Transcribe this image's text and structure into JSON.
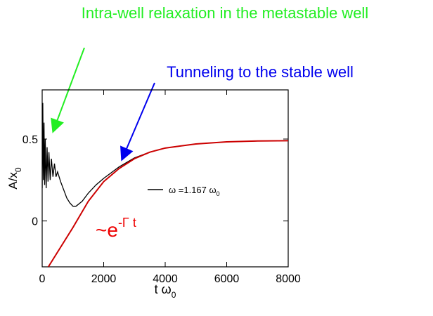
{
  "chart_data": {
    "type": "line",
    "annotations": {
      "relaxation": "Intra-well relaxation in the metastable well",
      "tunneling": "Tunneling to the stable well",
      "fit": [
        "~e",
        "-Γ t"
      ]
    },
    "xlabel": [
      "t ω",
      "0"
    ],
    "ylabel": [
      "A/x",
      "0"
    ],
    "xlim": [
      0,
      8000
    ],
    "ylim": [
      -0.28,
      0.8
    ],
    "xticks": [
      0,
      2000,
      4000,
      6000,
      8000
    ],
    "yticks": [
      0,
      0.5
    ],
    "series": [
      {
        "name": [
          "ω =1.167 ω",
          "0"
        ],
        "color": "#000000",
        "x": [
          0,
          20,
          40,
          60,
          80,
          100,
          130,
          160,
          190,
          220,
          260,
          300,
          350,
          400,
          450,
          500,
          600,
          700,
          800,
          900,
          1000,
          1100,
          1300,
          1500,
          1750,
          2000,
          2500,
          3000,
          3500,
          4000,
          5000,
          6000,
          7000,
          8000
        ],
        "values": [
          0.2,
          0.72,
          0.25,
          0.6,
          0.22,
          0.5,
          0.2,
          0.45,
          0.24,
          0.42,
          0.25,
          0.38,
          0.27,
          0.35,
          0.27,
          0.3,
          0.24,
          0.19,
          0.14,
          0.11,
          0.09,
          0.09,
          0.12,
          0.17,
          0.22,
          0.26,
          0.33,
          0.385,
          0.42,
          0.445,
          0.47,
          0.483,
          0.488,
          0.49
        ]
      },
      {
        "color": "#cc0000",
        "x": [
          200,
          500,
          1000,
          1500,
          2000,
          2500,
          3000,
          3500,
          4000,
          5000,
          6000,
          7000,
          8000
        ],
        "values": [
          -0.28,
          -0.19,
          -0.04,
          0.12,
          0.24,
          0.32,
          0.38,
          0.42,
          0.445,
          0.47,
          0.483,
          0.488,
          0.49
        ]
      }
    ]
  }
}
